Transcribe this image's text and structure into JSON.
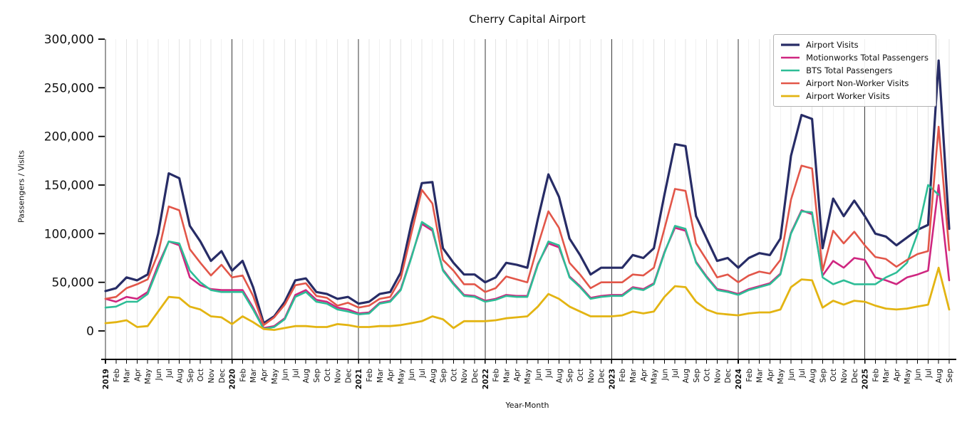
{
  "chart_data": {
    "type": "line",
    "title": "Cherry Capital Airport",
    "xlabel": "Year-Month",
    "ylabel": "Passengers / Visits",
    "ylim": [
      0,
      300000
    ],
    "y_max": 300000,
    "grid": "vertical-monthly, dark line at each January",
    "legend_position": "upper right",
    "y_ticks": [
      {
        "value": 0,
        "label": "0"
      },
      {
        "value": 50000,
        "label": "50,000"
      },
      {
        "value": 100000,
        "label": "100,000"
      },
      {
        "value": 150000,
        "label": "150,000"
      },
      {
        "value": 200000,
        "label": "200,000"
      },
      {
        "value": 250000,
        "label": "250,000"
      },
      {
        "value": 300000,
        "label": "300,000"
      }
    ],
    "months": [
      "2019",
      "Feb",
      "Mar",
      "Apr",
      "May",
      "Jun",
      "Jul",
      "Aug",
      "Sep",
      "Oct",
      "Nov",
      "Dec",
      "2020",
      "Feb",
      "Mar",
      "Apr",
      "May",
      "Jun",
      "Jul",
      "Aug",
      "Sep",
      "Oct",
      "Nov",
      "Dec",
      "2021",
      "Feb",
      "Mar",
      "Apr",
      "May",
      "Jun",
      "Jul",
      "Aug",
      "Sep",
      "Oct",
      "Nov",
      "Dec",
      "2022",
      "Feb",
      "Mar",
      "Apr",
      "May",
      "Jun",
      "Jul",
      "Aug",
      "Sep",
      "Oct",
      "Nov",
      "Dec",
      "2023",
      "Feb",
      "Mar",
      "Apr",
      "May",
      "Jun",
      "Jul",
      "Aug",
      "Sep",
      "Oct",
      "Nov",
      "Dec",
      "2024",
      "Feb",
      "Mar",
      "Apr",
      "May",
      "Jun",
      "Jul",
      "Aug",
      "Sep",
      "Oct",
      "Nov",
      "Dec",
      "2025",
      "Feb",
      "Mar",
      "Apr",
      "May",
      "Jun",
      "Jul",
      "Aug",
      "Sep"
    ],
    "series": [
      {
        "id": "airport-visits",
        "name": "Airport Visits",
        "color": "#272c66",
        "width": 3.2,
        "values": [
          41000,
          44000,
          55000,
          52000,
          58000,
          100000,
          162000,
          157000,
          108000,
          92000,
          72000,
          82000,
          62000,
          72000,
          45000,
          8000,
          15000,
          30000,
          52000,
          54000,
          40000,
          38000,
          33000,
          35000,
          28000,
          30000,
          38000,
          40000,
          60000,
          110000,
          152000,
          153000,
          85000,
          70000,
          58000,
          58000,
          50000,
          55000,
          70000,
          68000,
          65000,
          115000,
          161000,
          138000,
          95000,
          78000,
          58000,
          65000,
          65000,
          65000,
          78000,
          75000,
          85000,
          140000,
          192000,
          190000,
          118000,
          95000,
          72000,
          75000,
          65000,
          75000,
          80000,
          78000,
          95000,
          180000,
          222000,
          218000,
          85000,
          136000,
          118000,
          134000,
          118000,
          100000,
          97000,
          88000,
          96000,
          104000,
          109000,
          278000,
          105000
        ]
      },
      {
        "id": "motionworks-total-passengers",
        "name": "Motionworks Total Passengers",
        "color": "#cf2680",
        "width": 2.6,
        "values": [
          33000,
          30000,
          35000,
          33000,
          40000,
          68000,
          92000,
          88000,
          55000,
          47000,
          43000,
          42000,
          42000,
          42000,
          24000,
          3000,
          5000,
          13000,
          37000,
          42000,
          32000,
          30000,
          24000,
          22000,
          18000,
          19000,
          29000,
          31000,
          43000,
          76000,
          110000,
          103000,
          63000,
          49000,
          37000,
          36000,
          31000,
          33000,
          37000,
          36000,
          36000,
          69000,
          90000,
          86000,
          56000,
          46000,
          34000,
          36000,
          37000,
          37000,
          45000,
          43000,
          49000,
          81000,
          106000,
          103000,
          71000,
          56000,
          43000,
          41000,
          38000,
          43000,
          46000,
          49000,
          59000,
          101000,
          124000,
          120000,
          57000,
          72000,
          65000,
          75000,
          73000,
          55000,
          52000,
          48000,
          55000,
          58000,
          62000,
          150000,
          52000
        ]
      },
      {
        "id": "bts-total-passengers",
        "name": "BTS Total Passengers",
        "color": "#2dbd96",
        "width": 2.6,
        "values": [
          24000,
          25000,
          30000,
          30000,
          38000,
          65000,
          92000,
          90000,
          62000,
          50000,
          42000,
          40000,
          40000,
          40000,
          22000,
          2000,
          4000,
          12000,
          35000,
          40000,
          30000,
          28000,
          22000,
          20000,
          17000,
          18000,
          28000,
          30000,
          42000,
          75000,
          112000,
          105000,
          62000,
          48000,
          36000,
          35000,
          30000,
          32000,
          36000,
          35000,
          35000,
          68000,
          92000,
          88000,
          55000,
          45000,
          33000,
          35000,
          36000,
          36000,
          44000,
          42000,
          48000,
          80000,
          108000,
          105000,
          70000,
          55000,
          42000,
          40000,
          37000,
          42000,
          45000,
          48000,
          58000,
          100000,
          123000,
          122000,
          55000,
          48000,
          52000,
          48000,
          48000,
          48000,
          55000,
          60000,
          70000,
          100000,
          150000,
          140000,
          null
        ]
      },
      {
        "id": "airport-non-worker-visits",
        "name": "Airport Non-Worker Visits",
        "color": "#e25649",
        "width": 2.6,
        "values": [
          33000,
          35000,
          44000,
          48000,
          53000,
          80000,
          128000,
          124000,
          84000,
          70000,
          57000,
          68000,
          55000,
          57000,
          36000,
          6000,
          14000,
          27000,
          47000,
          49000,
          36000,
          34000,
          26000,
          29000,
          24000,
          26000,
          33000,
          35000,
          54000,
          100000,
          145000,
          131000,
          73000,
          62000,
          48000,
          48000,
          40000,
          44000,
          56000,
          53000,
          50000,
          88000,
          123000,
          106000,
          70000,
          58000,
          44000,
          50000,
          50000,
          50000,
          58000,
          57000,
          65000,
          105000,
          146000,
          144000,
          90000,
          73000,
          55000,
          58000,
          50000,
          57000,
          61000,
          59000,
          73000,
          135000,
          170000,
          167000,
          62000,
          103000,
          90000,
          102000,
          88000,
          76000,
          74000,
          66000,
          73000,
          79000,
          82000,
          210000,
          83000
        ]
      },
      {
        "id": "airport-worker-visits",
        "name": "Airport Worker Visits",
        "color": "#e3b412",
        "width": 2.8,
        "values": [
          8000,
          9000,
          11000,
          4000,
          5000,
          20000,
          35000,
          34000,
          25000,
          22000,
          15000,
          14000,
          7000,
          15000,
          9000,
          2000,
          1000,
          3000,
          5000,
          5000,
          4000,
          4000,
          7000,
          6000,
          4000,
          4000,
          5000,
          5000,
          6000,
          8000,
          10000,
          15000,
          12000,
          3000,
          10000,
          10000,
          10000,
          11000,
          13000,
          14000,
          15000,
          25000,
          38000,
          33000,
          25000,
          20000,
          15000,
          15000,
          15000,
          16000,
          20000,
          18000,
          20000,
          35000,
          46000,
          45000,
          30000,
          22000,
          18000,
          17000,
          16000,
          18000,
          19000,
          19000,
          22000,
          45000,
          53000,
          52000,
          24000,
          31000,
          27000,
          31000,
          30000,
          26000,
          23000,
          22000,
          23000,
          25000,
          27000,
          65000,
          22000
        ]
      }
    ]
  }
}
